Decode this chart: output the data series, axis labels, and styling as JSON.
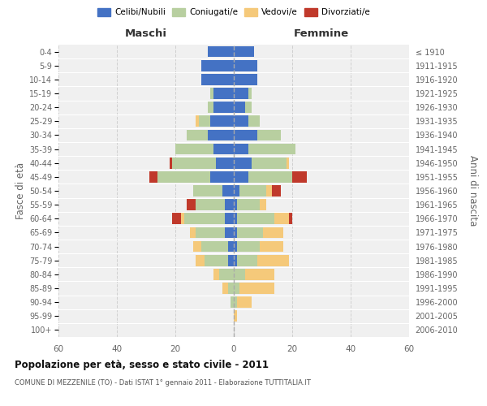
{
  "age_groups": [
    "0-4",
    "5-9",
    "10-14",
    "15-19",
    "20-24",
    "25-29",
    "30-34",
    "35-39",
    "40-44",
    "45-49",
    "50-54",
    "55-59",
    "60-64",
    "65-69",
    "70-74",
    "75-79",
    "80-84",
    "85-89",
    "90-94",
    "95-99",
    "100+"
  ],
  "birth_years": [
    "2006-2010",
    "2001-2005",
    "1996-2000",
    "1991-1995",
    "1986-1990",
    "1981-1985",
    "1976-1980",
    "1971-1975",
    "1966-1970",
    "1961-1965",
    "1956-1960",
    "1951-1955",
    "1946-1950",
    "1941-1945",
    "1936-1940",
    "1931-1935",
    "1926-1930",
    "1921-1925",
    "1916-1920",
    "1911-1915",
    "≤ 1910"
  ],
  "maschi": {
    "celibi": [
      9,
      11,
      11,
      7,
      7,
      8,
      9,
      7,
      6,
      8,
      4,
      3,
      3,
      3,
      2,
      2,
      0,
      0,
      0,
      0,
      0
    ],
    "coniugati": [
      0,
      0,
      0,
      1,
      2,
      4,
      7,
      13,
      15,
      18,
      10,
      10,
      14,
      10,
      9,
      8,
      5,
      2,
      1,
      0,
      0
    ],
    "vedovi": [
      0,
      0,
      0,
      0,
      0,
      1,
      0,
      0,
      0,
      0,
      0,
      0,
      1,
      2,
      3,
      3,
      2,
      2,
      0,
      0,
      0
    ],
    "divorziati": [
      0,
      0,
      0,
      0,
      0,
      0,
      0,
      0,
      1,
      3,
      0,
      3,
      3,
      0,
      0,
      0,
      0,
      0,
      0,
      0,
      0
    ]
  },
  "femmine": {
    "nubili": [
      7,
      8,
      8,
      5,
      4,
      5,
      8,
      5,
      6,
      5,
      2,
      1,
      1,
      1,
      1,
      1,
      0,
      0,
      0,
      0,
      0
    ],
    "coniugate": [
      0,
      0,
      0,
      1,
      2,
      4,
      8,
      16,
      12,
      15,
      9,
      8,
      13,
      9,
      8,
      7,
      4,
      2,
      1,
      0,
      0
    ],
    "vedove": [
      0,
      0,
      0,
      0,
      0,
      0,
      0,
      0,
      1,
      0,
      2,
      2,
      5,
      7,
      8,
      11,
      10,
      12,
      5,
      1,
      0
    ],
    "divorziate": [
      0,
      0,
      0,
      0,
      0,
      0,
      0,
      0,
      0,
      5,
      3,
      0,
      1,
      0,
      0,
      0,
      0,
      0,
      0,
      0,
      0
    ]
  },
  "colors": {
    "celibi": "#4472c4",
    "coniugati": "#b8cfa0",
    "vedovi": "#f5c97a",
    "divorziati": "#c0392b"
  },
  "xlim": 60,
  "title": "Popolazione per età, sesso e stato civile - 2011",
  "subtitle": "COMUNE DI MEZZENILE (TO) - Dati ISTAT 1° gennaio 2011 - Elaborazione TUTTITALIA.IT",
  "legend_labels": [
    "Celibi/Nubili",
    "Coniugati/e",
    "Vedovi/e",
    "Divorziati/e"
  ],
  "xlabel_left": "Maschi",
  "xlabel_right": "Femmine",
  "ylabel_left": "Fasce di età",
  "ylabel_right": "Anni di nascita",
  "bg_color": "#f0f0f0",
  "grid_color": "#cccccc"
}
